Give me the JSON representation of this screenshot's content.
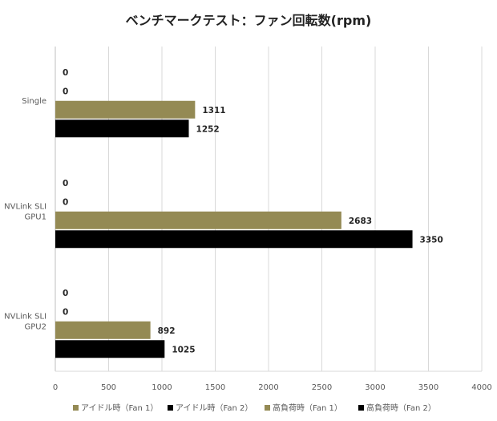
{
  "chart_data": {
    "type": "bar",
    "orientation": "horizontal",
    "title": "ベンチマークテスト：ファン回転数(rpm)",
    "categories": [
      "Single",
      "NVLink SLI GPU1",
      "NVLink SLI GPU2"
    ],
    "category_lines": [
      [
        "Single"
      ],
      [
        "NVLink SLI",
        "GPU1"
      ],
      [
        "NVLink SLI",
        "GPU2"
      ]
    ],
    "series": [
      {
        "name": "アイドル時（Fan 1）",
        "color": "#948A54",
        "values": [
          0,
          0,
          0
        ]
      },
      {
        "name": "アイドル時（Fan 2）",
        "color": "#000000",
        "values": [
          0,
          0,
          0
        ]
      },
      {
        "name": "高負荷時（Fan 1）",
        "color": "#948A54",
        "values": [
          1311,
          2683,
          892
        ]
      },
      {
        "name": "高負荷時（Fan 2）",
        "color": "#000000",
        "values": [
          1252,
          3350,
          1025
        ]
      }
    ],
    "xlim": [
      0,
      4000
    ],
    "xticks": [
      0,
      500,
      1000,
      1500,
      2000,
      2500,
      3000,
      3500,
      4000
    ],
    "grid": "vertical",
    "legend": "bottom",
    "data_labels": true
  }
}
